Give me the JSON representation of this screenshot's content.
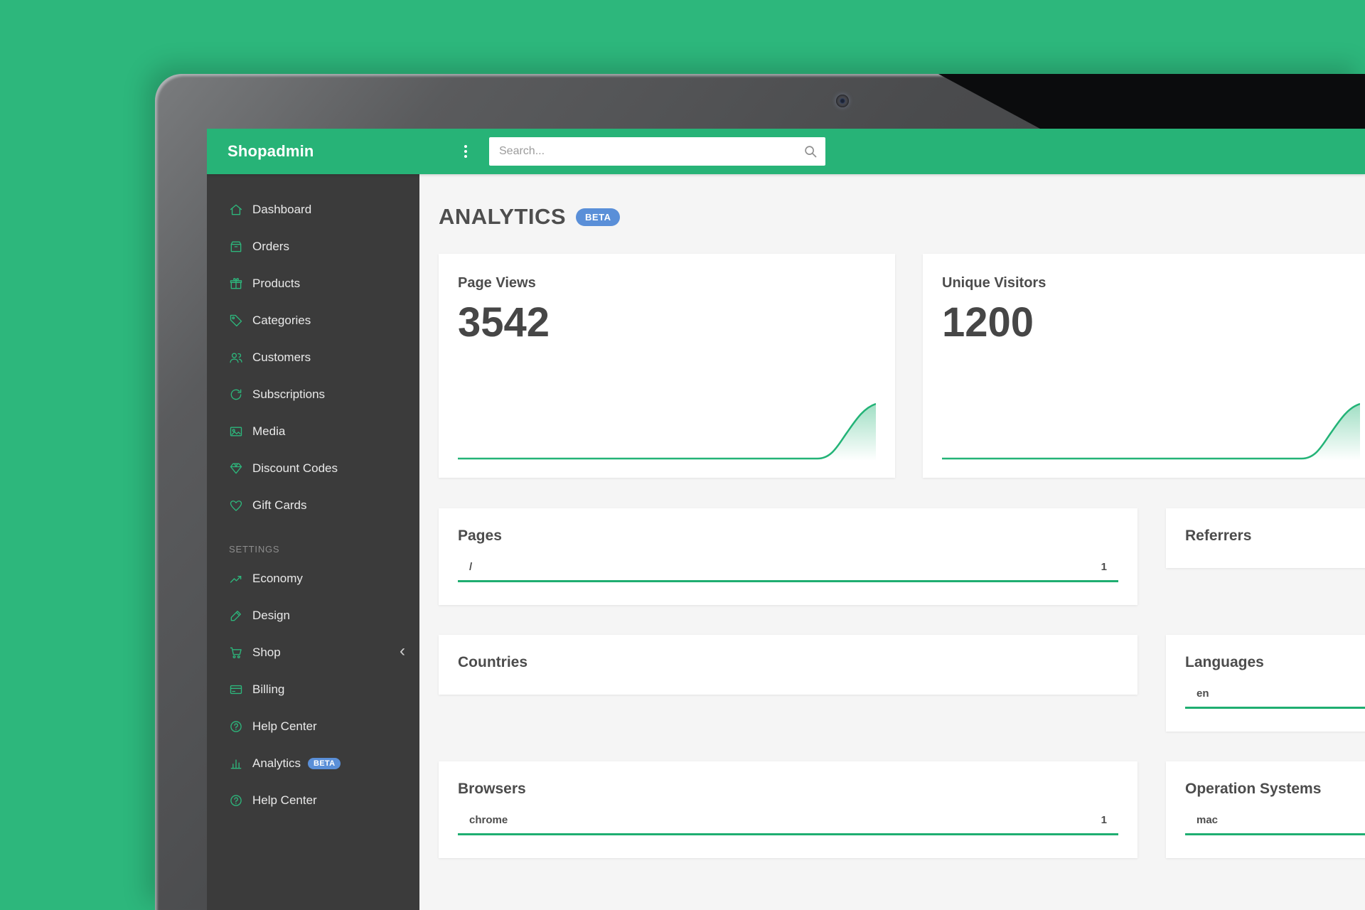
{
  "colors": {
    "background_green": "#2db77c",
    "header_green": "#27b377",
    "sidebar_bg": "#3b3b3b",
    "accent_green": "#1fae71",
    "beta_blue": "#5a8fd8",
    "main_bg": "#f5f5f5",
    "card_bg": "#ffffff"
  },
  "topbar": {
    "brand": "Shopadmin",
    "menu_icon": "kebab-menu-icon",
    "search_placeholder": "Search...",
    "search_icon": "search-icon"
  },
  "sidebar": {
    "main_items": [
      {
        "label": "Dashboard",
        "icon": "home-icon"
      },
      {
        "label": "Orders",
        "icon": "box-icon"
      },
      {
        "label": "Products",
        "icon": "gift-icon"
      },
      {
        "label": "Categories",
        "icon": "tag-icon"
      },
      {
        "label": "Customers",
        "icon": "users-icon"
      },
      {
        "label": "Subscriptions",
        "icon": "refresh-icon"
      },
      {
        "label": "Media",
        "icon": "image-icon"
      },
      {
        "label": "Discount Codes",
        "icon": "diamond-icon"
      },
      {
        "label": "Gift Cards",
        "icon": "heart-icon"
      }
    ],
    "settings_label": "SETTINGS",
    "settings_items": [
      {
        "label": "Economy",
        "icon": "chart-line-icon"
      },
      {
        "label": "Design",
        "icon": "design-icon"
      },
      {
        "label": "Shop",
        "icon": "cart-icon",
        "chevron": true
      },
      {
        "label": "Billing",
        "icon": "credit-card-icon"
      },
      {
        "label": "Help Center",
        "icon": "help-icon"
      },
      {
        "label": "Analytics",
        "icon": "bar-chart-icon",
        "badge": "BETA",
        "active": true
      },
      {
        "label": "Help Center",
        "icon": "help-icon"
      }
    ]
  },
  "page": {
    "title": "ANALYTICS",
    "badge": "BETA"
  },
  "stat_cards": [
    {
      "label": "Page Views",
      "value": "3542",
      "sparkline": "flat line rising sharply near right edge"
    },
    {
      "label": "Unique Visitors",
      "value": "1200",
      "sparkline": "flat line rising sharply near right edge (partially cut off)"
    }
  ],
  "panels": [
    {
      "title": "Pages",
      "rows": [
        {
          "label": "/",
          "value": "1"
        }
      ]
    },
    {
      "title": "Referrers",
      "rows": []
    },
    {
      "title": "Countries",
      "rows": []
    },
    {
      "title": "Languages",
      "rows": [
        {
          "label": "en",
          "value": ""
        }
      ]
    },
    {
      "title": "Browsers",
      "rows": [
        {
          "label": "chrome",
          "value": "1"
        }
      ]
    },
    {
      "title": "Operation Systems",
      "rows": [
        {
          "label": "mac",
          "value": ""
        }
      ]
    }
  ]
}
